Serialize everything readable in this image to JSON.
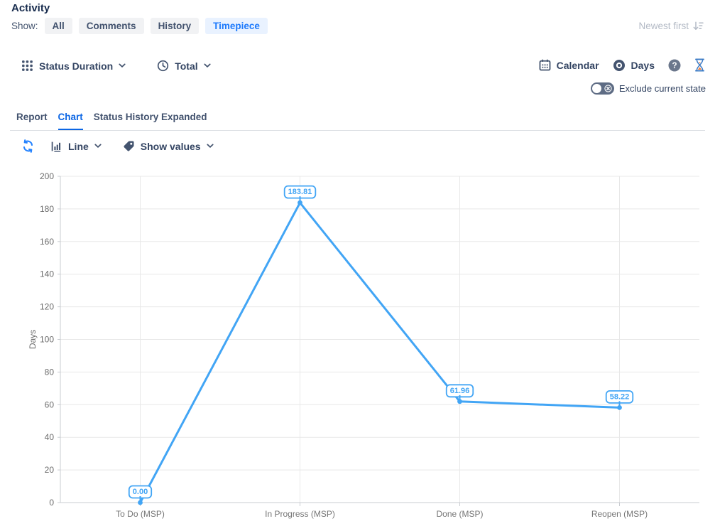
{
  "header": {
    "title": "Activity",
    "show_label": "Show:",
    "filters": [
      {
        "label": "All",
        "active": false
      },
      {
        "label": "Comments",
        "active": false
      },
      {
        "label": "History",
        "active": false
      },
      {
        "label": "Timepiece",
        "active": true
      }
    ],
    "sort_label": "Newest first"
  },
  "toolbar": {
    "grouping_label": "Status Duration",
    "aggregation_label": "Total",
    "calendar_label": "Calendar",
    "unit_label": "Days",
    "exclude_current_state_label": "Exclude current state",
    "exclude_current_state_on": false
  },
  "tabs": {
    "report": "Report",
    "chart": "Chart",
    "status_history_expanded": "Status History Expanded",
    "active": "Chart"
  },
  "chart_toolbar": {
    "chart_type": "Line",
    "show_values": "Show values"
  },
  "chart_data": {
    "type": "line",
    "categories": [
      "To Do (MSP)",
      "In Progress (MSP)",
      "Done (MSP)",
      "Reopen (MSP)"
    ],
    "values": [
      0.0,
      183.81,
      61.96,
      58.22
    ],
    "value_labels": [
      "0.00",
      "183.81",
      "61.96",
      "58.22"
    ],
    "ylabel": "Days",
    "ylim": [
      0,
      200
    ],
    "ytick_step": 20,
    "grid": true,
    "legend": false,
    "line_color": "#42A5F5"
  },
  "colors": {
    "accent_blue": "#2684FF",
    "filter_active_bg": "#E9F2FF",
    "filter_active_text": "#1D7AFC",
    "filter_bg": "#F1F2F4",
    "text_dark": "#344563",
    "tab_active": "#0C66E4",
    "muted_gray": "#B3BAC5",
    "gridline": "#E8E8E8"
  }
}
